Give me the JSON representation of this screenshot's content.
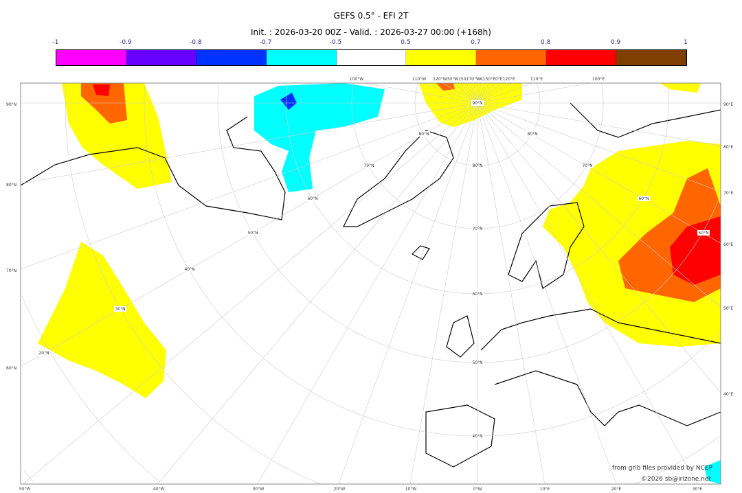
{
  "title": "GEFS 0.5° - EFI 2T",
  "subtitle": "Init. : 2026-03-20 00Z - Valid. : 2026-03-27 00:00 (+168h)",
  "colorbar": {
    "ticks": [
      "-1",
      "-0.9",
      "-0.8",
      "-0.7",
      "-0.5",
      "0.5",
      "0.7",
      "0.8",
      "0.9",
      "1"
    ],
    "colors": [
      "#ff00ff",
      "#6600ff",
      "#0033ff",
      "#00ffff",
      "#ffffff",
      "#ffff00",
      "#ff6600",
      "#ff0000",
      "#7f3f00"
    ]
  },
  "axes": {
    "left": [
      "90°N",
      "80°N",
      "70°N",
      "60°N"
    ],
    "right": [
      "90°E",
      "80°E",
      "70°E",
      "60°E",
      "50°E",
      "40°E"
    ],
    "bottom": [
      "50°W",
      "40°W",
      "30°W",
      "20°W",
      "10°W",
      "0°W",
      "10°E",
      "20°E",
      "30°E"
    ],
    "top": [
      "100°W",
      "110°W",
      "120°W30°W150170°W€150°E0°E120°E",
      "110°E",
      "100°E"
    ]
  },
  "grid_labels": [
    "90°N",
    "80°N",
    "70°N",
    "60°N",
    "50°N",
    "40°N",
    "30°N",
    "20°N",
    "80°N",
    "70°N",
    "60°N",
    "50°N",
    "80°N",
    "70°N",
    "60°N",
    "50°N",
    "40°N"
  ],
  "credits": {
    "line1": "from grib files provided by NCEP",
    "line2": "©2026 sb@irizone.net"
  }
}
